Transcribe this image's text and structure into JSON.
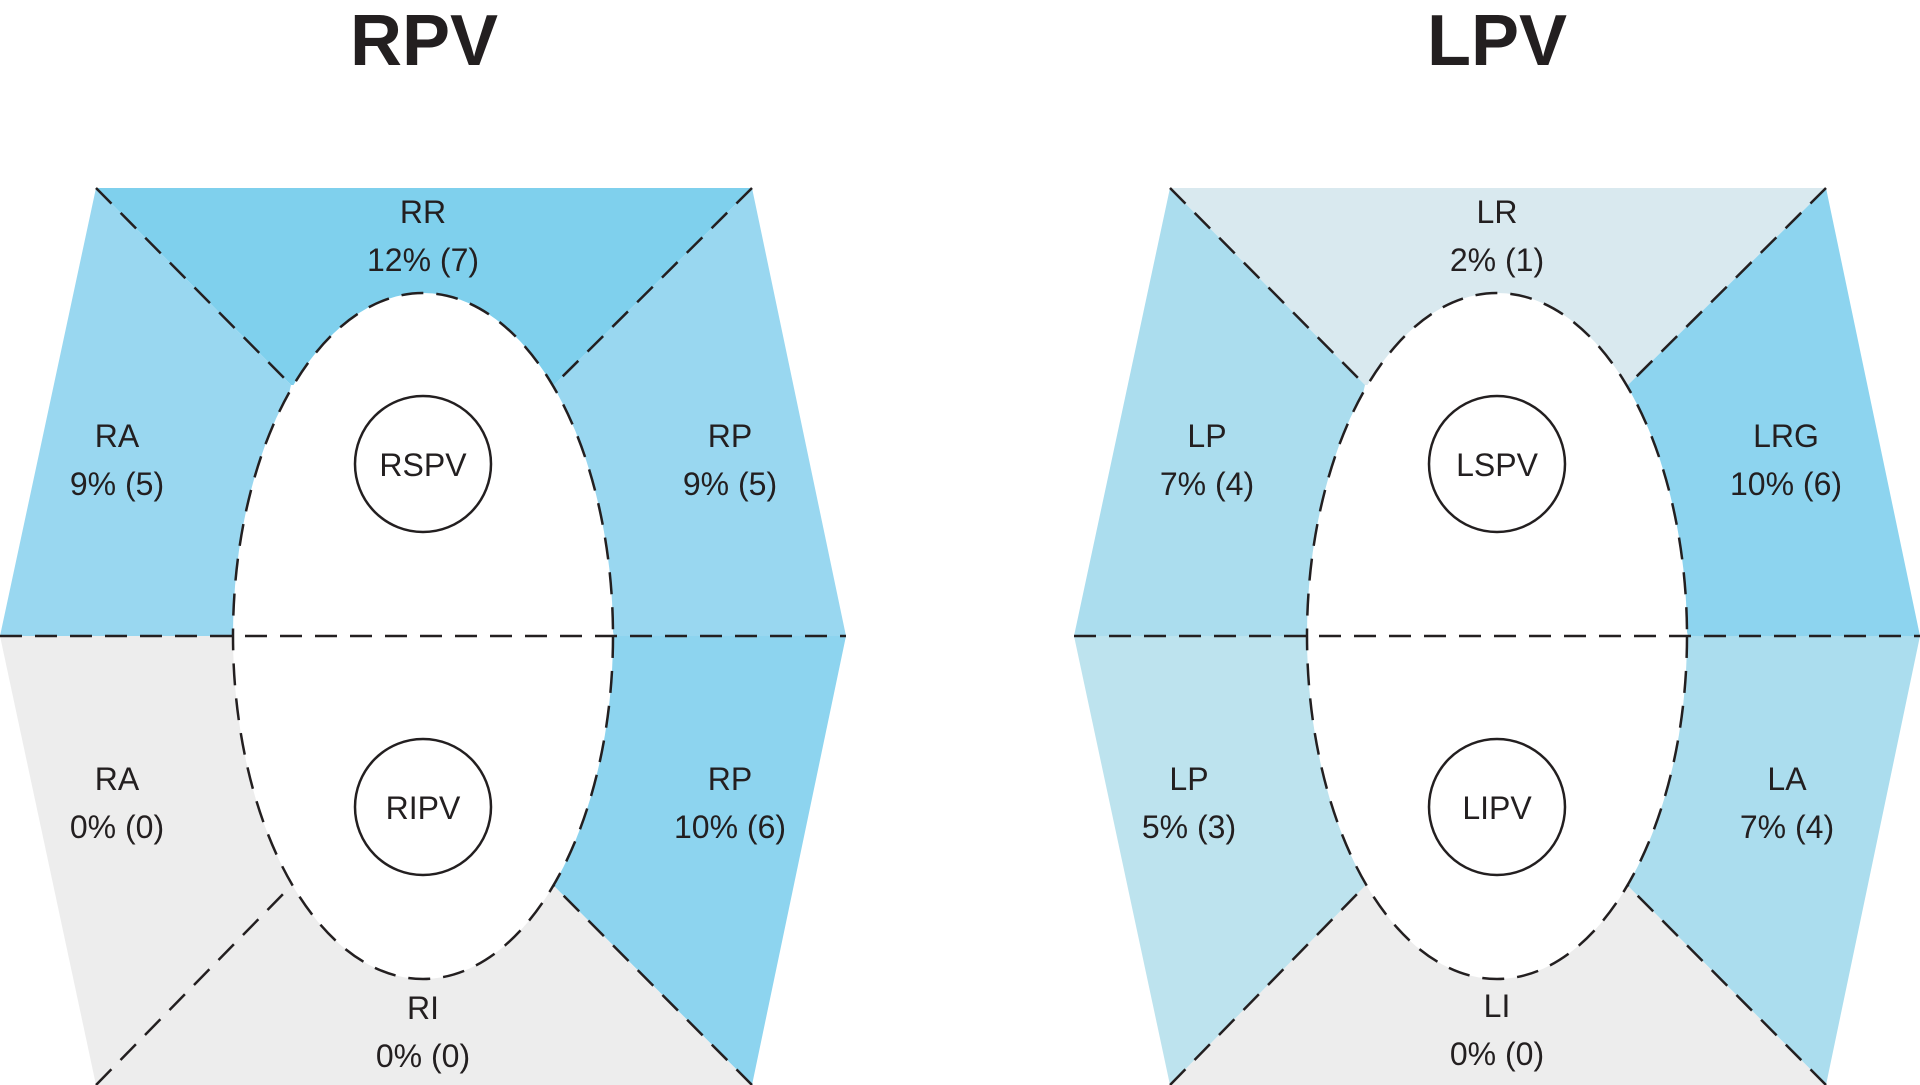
{
  "diagrams": [
    {
      "title": "RPV",
      "veins": {
        "upper": "RSPV",
        "lower": "RIPV"
      },
      "segments": {
        "top": {
          "name": "RR",
          "value": "12% (7)",
          "color": "#7fd0ed"
        },
        "upper_left": {
          "name": "RA",
          "value": "9% (5)",
          "color": "#99d7f0"
        },
        "upper_right": {
          "name": "RP",
          "value": "9% (5)",
          "color": "#99d7f0"
        },
        "lower_left": {
          "name": "RA",
          "value": "0% (0)",
          "color": "#ededed"
        },
        "lower_right": {
          "name": "RP",
          "value": "10% (6)",
          "color": "#8dd4ef"
        },
        "bottom": {
          "name": "RI",
          "value": "0% (0)",
          "color": "#ededed"
        }
      }
    },
    {
      "title": "LPV",
      "veins": {
        "upper": "LSPV",
        "lower": "LIPV"
      },
      "segments": {
        "top": {
          "name": "LR",
          "value": "2% (1)",
          "color": "#d9e9ef"
        },
        "upper_left": {
          "name": "LP",
          "value": "7% (4)",
          "color": "#abddee"
        },
        "upper_right": {
          "name": "LRG",
          "value": "10% (6)",
          "color": "#8dd4ef"
        },
        "lower_left": {
          "name": "LP",
          "value": "5% (3)",
          "color": "#bde3ee"
        },
        "lower_right": {
          "name": "LA",
          "value": "7% (4)",
          "color": "#abddee"
        },
        "bottom": {
          "name": "LI",
          "value": "0% (0)",
          "color": "#ededed"
        }
      }
    }
  ]
}
